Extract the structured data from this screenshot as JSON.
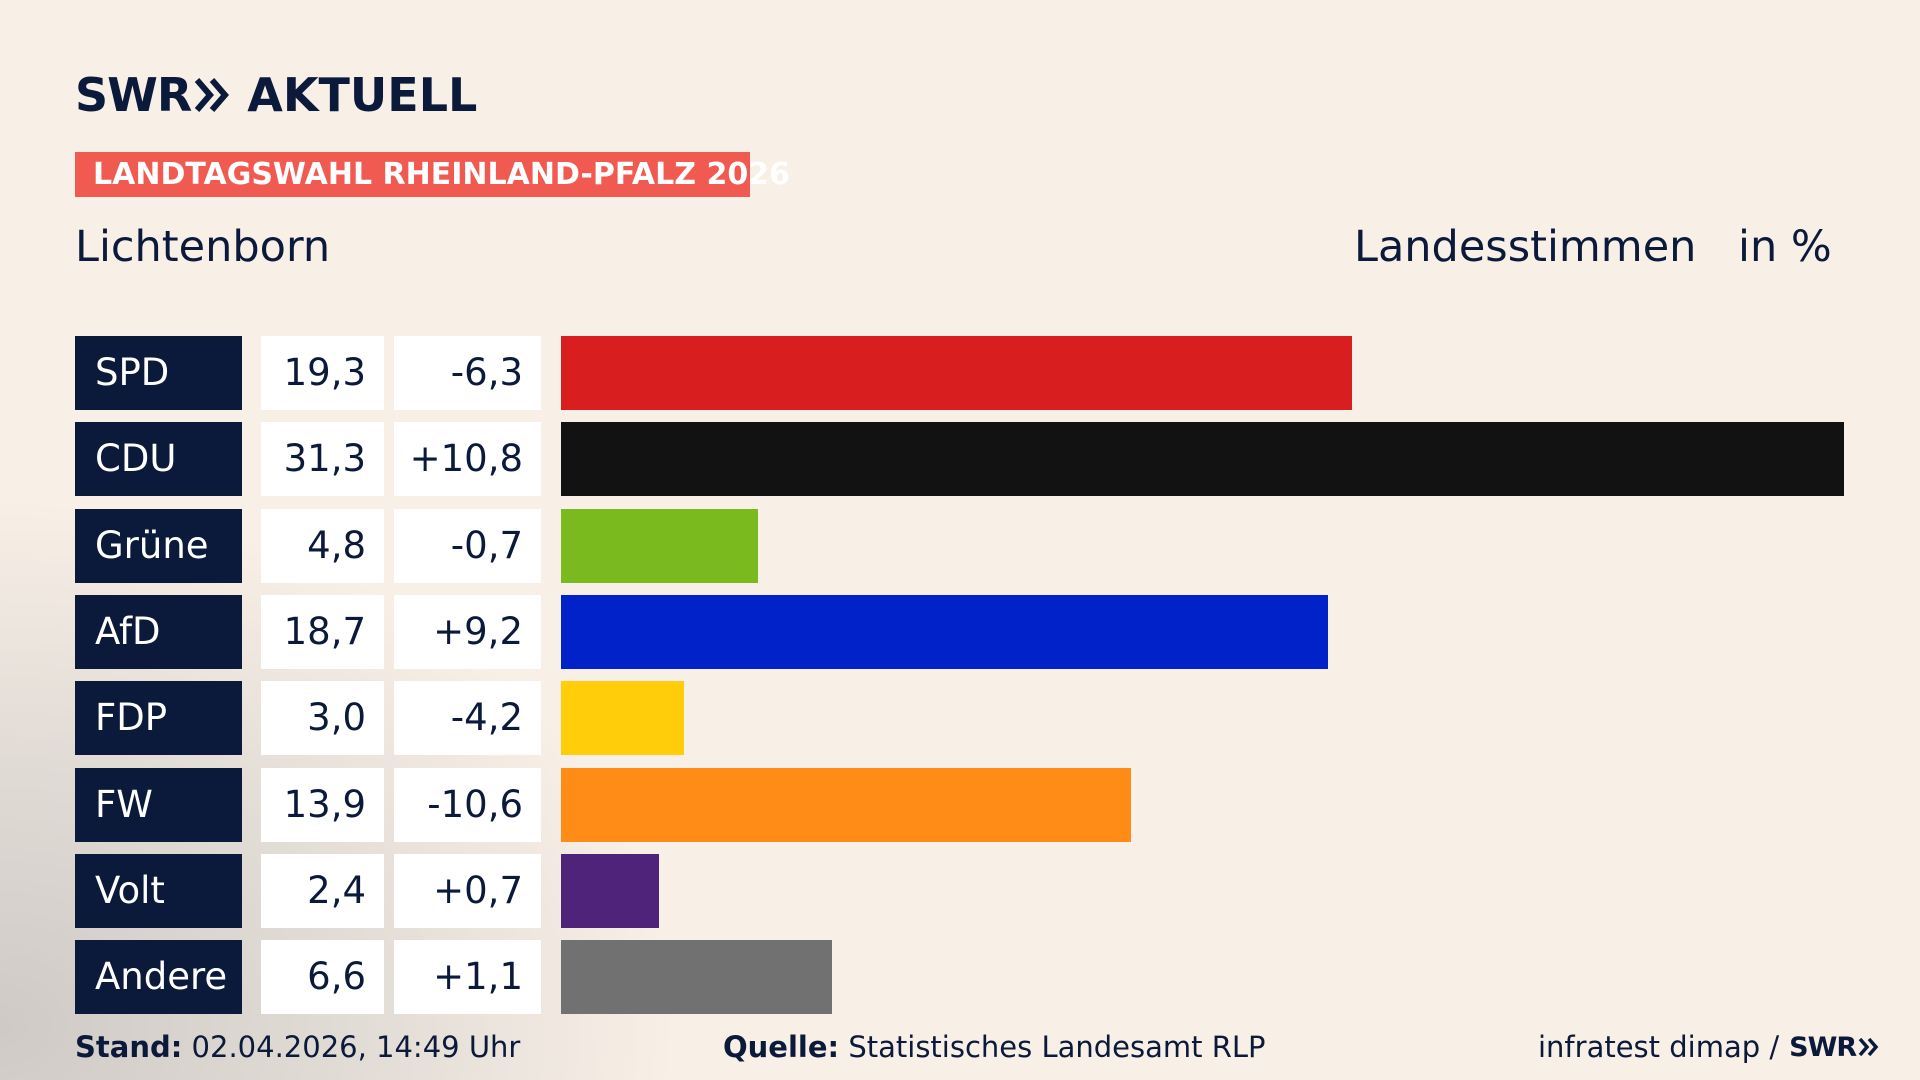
{
  "header": {
    "logo_text": "SWR",
    "logo_suffix": "AKTUELL",
    "badge": "LANDTAGSWAHL RHEINLAND-PFALZ 2026",
    "place": "Lichtenborn",
    "vote_type": "Landesstimmen",
    "unit": "in %"
  },
  "chart_data": {
    "type": "bar",
    "orientation": "horizontal",
    "categories": [
      "SPD",
      "CDU",
      "Grüne",
      "AfD",
      "FDP",
      "FW",
      "Volt",
      "Andere"
    ],
    "values": [
      19.3,
      31.3,
      4.8,
      18.7,
      3.0,
      13.9,
      2.4,
      6.6
    ],
    "value_labels": [
      "19,3",
      "31,3",
      "4,8",
      "18,7",
      "3,0",
      "13,9",
      "2,4",
      "6,6"
    ],
    "diff_labels": [
      "-6,3",
      "+10,8",
      "-0,7",
      "+9,2",
      "-4,2",
      "-10,6",
      "+0,7",
      "+1,1"
    ],
    "diffs": [
      -6.3,
      10.8,
      -0.7,
      9.2,
      -4.2,
      -10.6,
      0.7,
      1.1
    ],
    "colors": [
      "#d81e1e",
      "#121212",
      "#7aba1e",
      "#0022c8",
      "#ffcd09",
      "#ff8c16",
      "#50237a",
      "#717171"
    ],
    "xlim": [
      0,
      31.3
    ],
    "grid": false,
    "legend": "none"
  },
  "footer": {
    "stand_label": "Stand:",
    "stand_value": "02.04.2026, 14:49 Uhr",
    "quelle_label": "Quelle:",
    "quelle_value": "Statistisches Landesamt RLP",
    "credit": "infratest dimap /",
    "credit_logo": "SWR"
  },
  "icons": {
    "logo_chevrons": "double-chevron-right-icon"
  }
}
